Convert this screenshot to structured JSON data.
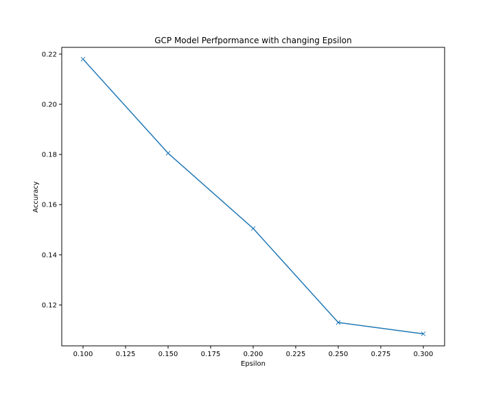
{
  "chart_data": {
    "type": "line",
    "title": "GCP Model Perfpormance with changing Epsilon",
    "xlabel": "Epsilon",
    "ylabel": "Accuracy",
    "x": [
      0.1,
      0.15,
      0.2,
      0.25,
      0.3
    ],
    "series": [
      {
        "values": [
          0.218,
          0.1805,
          0.1505,
          0.113,
          0.1085
        ],
        "color": "#1f77b4",
        "marker": "x"
      }
    ],
    "xlim": [
      0.0875,
      0.3125
    ],
    "ylim": [
      0.1037,
      0.2227
    ],
    "xticks": [
      0.1,
      0.125,
      0.15,
      0.175,
      0.2,
      0.225,
      0.25,
      0.275,
      0.3
    ],
    "xtick_labels": [
      "0.100",
      "0.125",
      "0.150",
      "0.175",
      "0.200",
      "0.225",
      "0.250",
      "0.275",
      "0.300"
    ],
    "yticks": [
      0.12,
      0.14,
      0.16,
      0.18,
      0.2,
      0.22
    ],
    "ytick_labels": [
      "0.12",
      "0.14",
      "0.16",
      "0.18",
      "0.20",
      "0.22"
    ],
    "grid": false,
    "legend": "none"
  }
}
